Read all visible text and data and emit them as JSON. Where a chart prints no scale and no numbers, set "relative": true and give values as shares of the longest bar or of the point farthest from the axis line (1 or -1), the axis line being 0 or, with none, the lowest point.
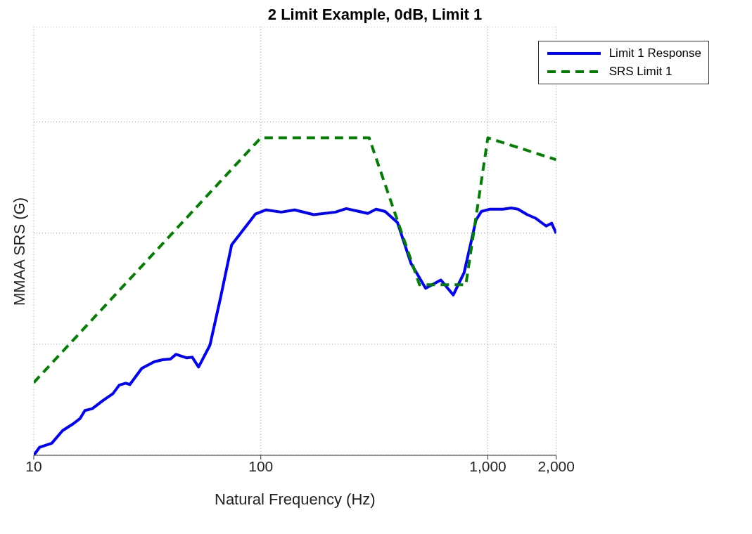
{
  "chart_data": {
    "type": "line",
    "title": "2 Limit Example, 0dB, Limit 1",
    "xlabel": "Natural Frequency (Hz)",
    "ylabel": "MMAA SRS (G)",
    "relative": true,
    "log": "x",
    "xlim": [
      10,
      2000
    ],
    "xticks": [
      10,
      100,
      {
        "value": 1000,
        "label": "1,000"
      },
      {
        "value": 2000,
        "label": "2,000"
      }
    ],
    "grid": true,
    "legend": "top right",
    "marker": "none",
    "series": [
      {
        "name": "Limit 1 Response",
        "color": "#0000ff",
        "line_style": "solid",
        "x": [
          10,
          10.6,
          12,
          13.4,
          14.9,
          16,
          16.8,
          18.1,
          20.2,
          22.3,
          23.8,
          25.4,
          26.5,
          29.9,
          34,
          36.9,
          40,
          42.3,
          47.2,
          49.9,
          53.2,
          59.7,
          66.6,
          74.4,
          88.6,
          94.7,
          105.6,
          123,
          141,
          171,
          213,
          238,
          296,
          322,
          353,
          400,
          459,
          532,
          621,
          704,
          786,
          887,
          936,
          1016,
          1166,
          1266,
          1359,
          1492,
          1620,
          1807,
          1910,
          2000
        ],
        "values": [
          0,
          0.025,
          0.038,
          0.078,
          0.099,
          0.116,
          0.141,
          0.147,
          0.173,
          0.194,
          0.221,
          0.227,
          0.223,
          0.274,
          0.295,
          0.301,
          0.303,
          0.318,
          0.307,
          0.309,
          0.278,
          0.347,
          0.499,
          0.663,
          0.733,
          0.76,
          0.773,
          0.766,
          0.773,
          0.758,
          0.766,
          0.777,
          0.762,
          0.775,
          0.768,
          0.733,
          0.604,
          0.526,
          0.552,
          0.505,
          0.575,
          0.741,
          0.768,
          0.775,
          0.775,
          0.779,
          0.775,
          0.758,
          0.747,
          0.722,
          0.731,
          0.699
        ]
      },
      {
        "name": "SRS Limit 1",
        "color": "#008000",
        "line_style": "dashed",
        "x": [
          10,
          100,
          300,
          500,
          800,
          1000,
          2000
        ],
        "values": [
          0.229,
          1,
          1,
          0.537,
          0.537,
          1,
          0.931
        ]
      }
    ]
  }
}
